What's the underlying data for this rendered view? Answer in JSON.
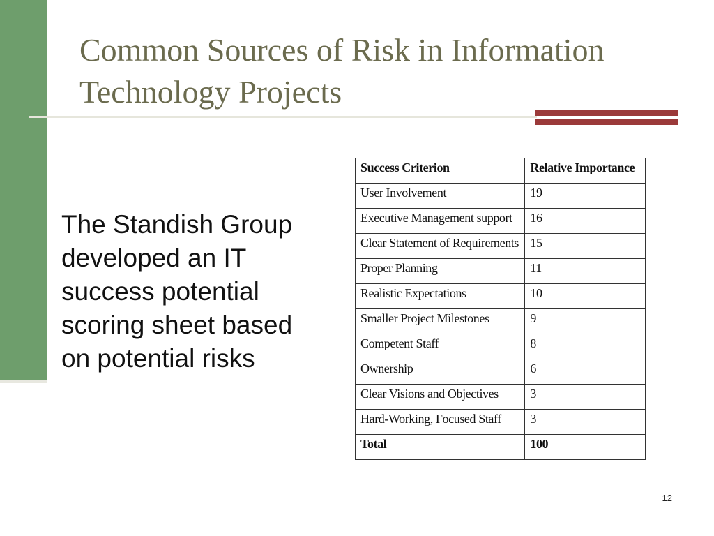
{
  "slide": {
    "title": "Common Sources of Risk in Information Technology Projects",
    "body_text": "The Standish Group developed an IT success potential scoring sheet based on potential risks",
    "page_number": "12"
  },
  "table": {
    "headers": [
      "Success Criterion",
      "Relative Importance"
    ],
    "rows": [
      [
        "User Involvement",
        "19"
      ],
      [
        "Executive Management support",
        "16"
      ],
      [
        "Clear Statement of Requirements",
        "15"
      ],
      [
        "Proper Planning",
        "11"
      ],
      [
        "Realistic Expectations",
        "10"
      ],
      [
        "Smaller Project Milestones",
        "9"
      ],
      [
        "Competent Staff",
        "8"
      ],
      [
        "Ownership",
        "6"
      ],
      [
        "Clear Visions and Objectives",
        "3"
      ],
      [
        "Hard-Working, Focused Staff",
        "3"
      ]
    ],
    "total": [
      "Total",
      "100"
    ]
  },
  "colors": {
    "left_bar": "#6e9e6c",
    "accent": "#9b3a3a",
    "title_text": "#6b6b4e"
  }
}
